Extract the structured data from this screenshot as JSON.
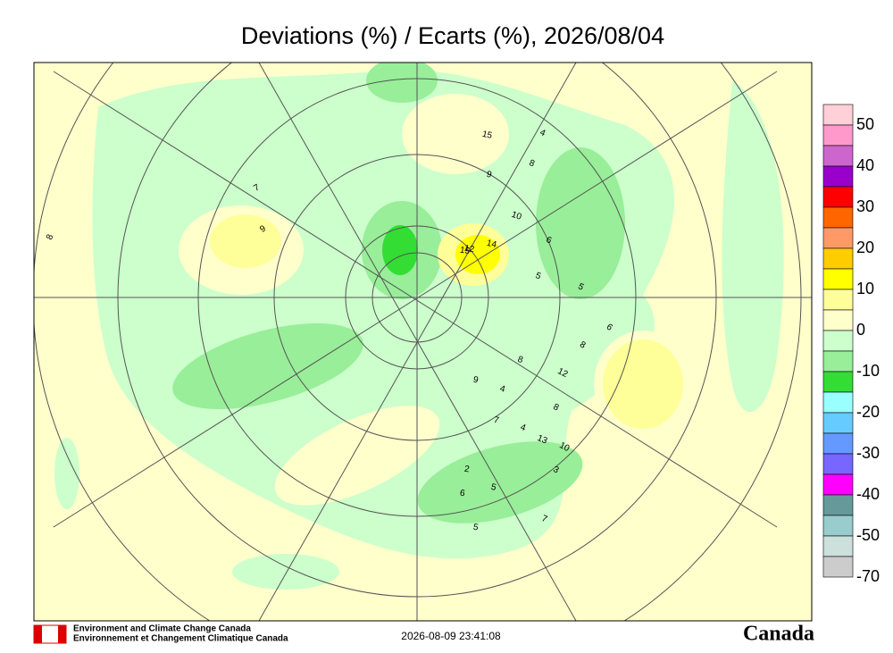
{
  "title": "Deviations (%) / Ecarts (%), 2026/08/04",
  "legend": {
    "colors": [
      "#ffd0d8",
      "#ff99cc",
      "#cc66cc",
      "#9900cc",
      "#ff0000",
      "#ff6600",
      "#ff9966",
      "#ffcc00",
      "#ffff00",
      "#ffff99",
      "#ffffcc",
      "#ccffcc",
      "#99ee99",
      "#33dd33",
      "#99ffff",
      "#66ccff",
      "#6699ff",
      "#7766ff",
      "#ff00ff",
      "#669999",
      "#99cccc",
      "#cce0dc",
      "#cccccc"
    ],
    "labels": [
      50,
      40,
      30,
      20,
      10,
      0,
      -10,
      -20,
      -30,
      -40,
      -50,
      -70
    ]
  },
  "stations": [
    8,
    15,
    4,
    8,
    9,
    9,
    7,
    10,
    12,
    14,
    15,
    5,
    6,
    5,
    6,
    8,
    8,
    12,
    9,
    4,
    8,
    7,
    4,
    13,
    10,
    3,
    2,
    6,
    5,
    7,
    5
  ],
  "footer": {
    "agency_en": "Environment and Climate Change Canada",
    "agency_fr": "Environnement et Changement Climatique Canada",
    "timestamp": "2026-08-09 23:41:08",
    "wordmark": "Canada"
  }
}
